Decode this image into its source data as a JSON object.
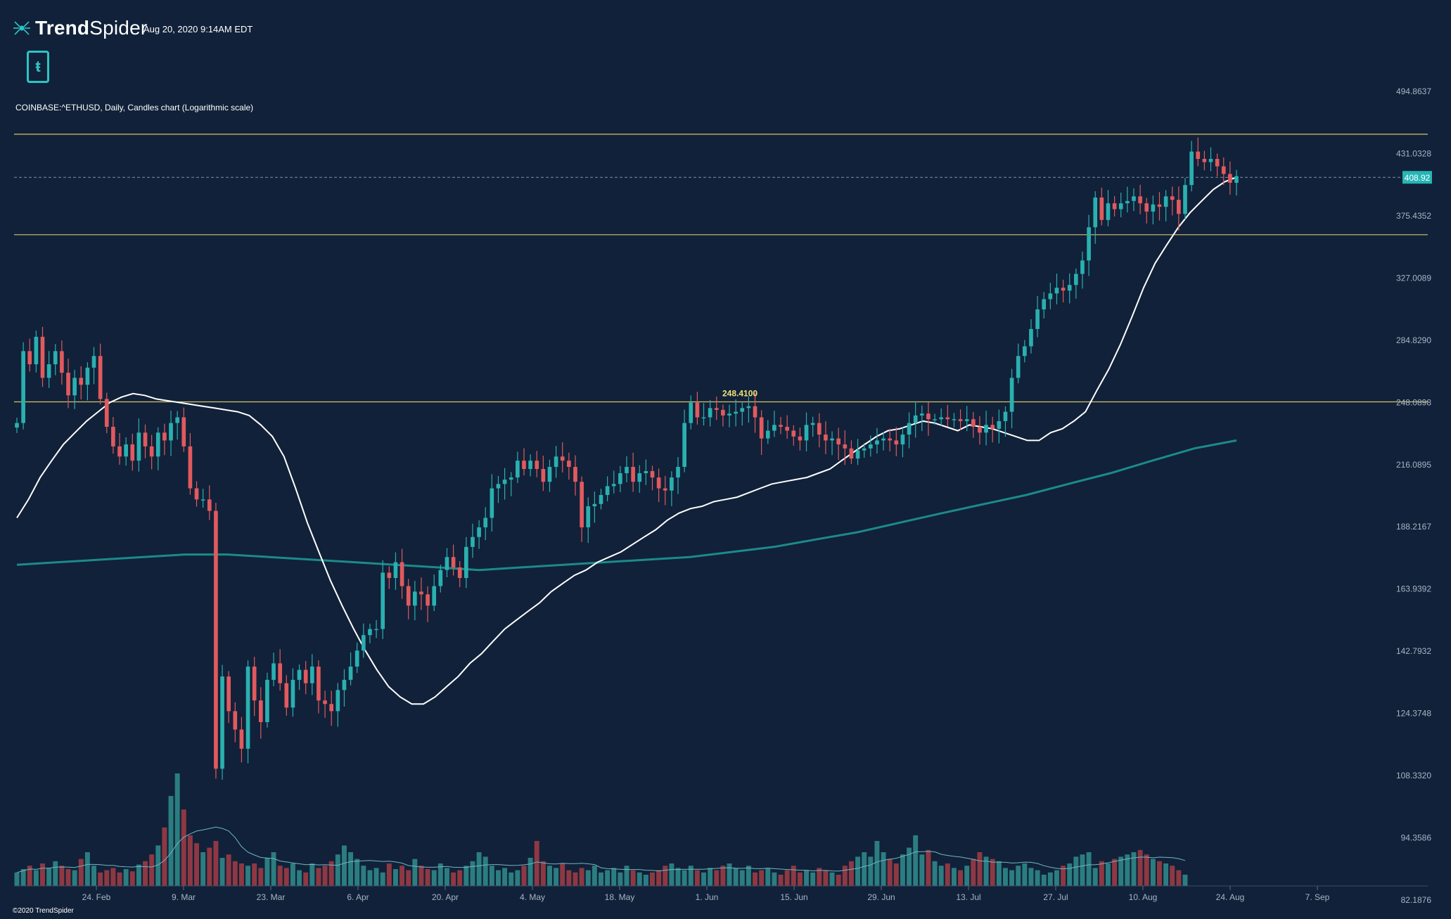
{
  "app": {
    "brand_bold": "Trend",
    "brand_light": "Spider",
    "timestamp": "Aug 20, 2020 9:14AM EDT",
    "badge_letter": "ŧ",
    "copyright": "©2020 TrendSpider"
  },
  "chart_data": {
    "type": "candlestick",
    "title": "COINBASE:^ETHUSD, Daily, Candles chart (Logarithmic scale)",
    "scale": "log",
    "y_tick_labels": [
      "494.8637",
      "431.0328",
      "375.4352",
      "327.0089",
      "284.8290",
      "248.0898",
      "216.0895",
      "188.2167",
      "163.9392",
      "142.7932",
      "124.3748",
      "108.3320",
      "94.3586",
      "82.1876"
    ],
    "x_tick_labels": [
      "24. Feb",
      "9. Mar",
      "23. Mar",
      "6. Apr",
      "20. Apr",
      "4. May",
      "18. May",
      "1. Jun",
      "15. Jun",
      "29. Jun",
      "13. Jul",
      "27. Jul",
      "10. Aug",
      "24. Aug",
      "7. Sep"
    ],
    "last_price": "408.92",
    "annotation": "248.4100",
    "horizontal_lines": [
      450,
      360,
      248.41
    ],
    "colors": {
      "up": "#2ab0b0",
      "down": "#e05a5e",
      "ma_fast": "#ffffff",
      "ma_slow": "#1c8a8a",
      "level_line": "#d6c46a",
      "price_tag": "#26b6b6"
    },
    "closes": [
      237,
      278,
      270,
      287,
      262,
      270,
      278,
      265,
      252,
      262,
      258,
      268,
      275,
      250,
      235,
      225,
      220,
      226,
      218,
      232,
      225,
      220,
      232,
      228,
      237,
      240,
      225,
      205,
      200,
      200,
      195,
      110,
      135,
      125,
      120,
      115,
      138,
      128,
      122,
      134,
      139,
      133,
      126,
      134,
      137,
      133,
      138,
      128,
      127,
      125,
      131,
      134,
      138,
      143,
      148,
      150,
      150,
      170,
      168,
      174,
      165,
      158,
      163,
      162,
      158,
      165,
      171,
      176,
      172,
      168,
      180,
      184,
      188,
      192,
      205,
      207,
      209,
      210,
      218,
      214,
      218,
      214,
      208,
      215,
      220,
      218,
      215,
      208,
      188,
      197,
      198,
      202,
      206,
      207,
      212,
      215,
      208,
      212,
      213,
      210,
      205,
      204,
      210,
      215,
      237,
      248,
      240,
      240,
      245,
      244,
      241,
      242,
      243,
      245,
      246,
      240,
      229,
      233,
      236,
      235,
      233,
      230,
      228,
      236,
      237,
      231,
      228,
      229,
      226,
      224,
      219,
      223,
      224,
      226,
      228,
      229,
      228,
      226,
      231,
      237,
      241,
      242,
      239,
      239,
      240,
      239,
      239,
      238,
      239,
      235,
      232,
      236,
      234,
      238,
      243,
      262,
      275,
      281,
      292,
      305,
      312,
      316,
      320,
      318,
      322,
      330,
      340,
      366,
      391,
      372,
      386,
      381,
      386,
      388,
      392,
      386,
      379,
      385,
      383,
      392,
      389,
      377,
      402,
      433,
      426,
      423,
      426,
      419,
      412,
      404,
      410
    ],
    "ma_fast": [
      192,
      200,
      210,
      218,
      226,
      232,
      238,
      243,
      248,
      251,
      253,
      252,
      250,
      249,
      248,
      247,
      246,
      245,
      244,
      243,
      241,
      236,
      230,
      220,
      205,
      190,
      178,
      167,
      158,
      150,
      143,
      137,
      132,
      129,
      127,
      127,
      129,
      132,
      135,
      139,
      142,
      146,
      150,
      153,
      156,
      159,
      163,
      166,
      169,
      171,
      174,
      176,
      178,
      181,
      184,
      187,
      191,
      194,
      196,
      197,
      199,
      200,
      201,
      203,
      205,
      207,
      208,
      209,
      210,
      212,
      214,
      218,
      222,
      226,
      230,
      233,
      234,
      236,
      238,
      237,
      235,
      233,
      236,
      235,
      234,
      232,
      230,
      228,
      228,
      232,
      234,
      238,
      243,
      255,
      267,
      282,
      300,
      320,
      338,
      352,
      366,
      378,
      388,
      398,
      405,
      409
    ],
    "ma_slow": [
      173,
      174,
      175,
      176,
      177,
      177,
      176,
      175,
      174,
      173,
      172,
      171,
      172,
      173,
      174,
      175,
      176,
      178,
      180,
      183,
      186,
      190,
      194,
      198,
      202,
      207,
      212,
      218,
      224,
      228
    ],
    "volume": [
      12,
      15,
      18,
      14,
      20,
      16,
      22,
      18,
      15,
      14,
      24,
      30,
      18,
      12,
      14,
      16,
      12,
      15,
      13,
      19,
      22,
      28,
      36,
      52,
      80,
      100,
      68,
      45,
      38,
      30,
      34,
      40,
      25,
      28,
      22,
      20,
      18,
      20,
      16,
      25,
      30,
      18,
      16,
      20,
      14,
      12,
      20,
      16,
      18,
      22,
      28,
      36,
      30,
      24,
      18,
      14,
      16,
      12,
      20,
      15,
      18,
      14,
      24,
      18,
      15,
      14,
      20,
      16,
      12,
      14,
      18,
      22,
      30,
      26,
      18,
      14,
      16,
      12,
      14,
      18,
      25,
      40,
      22,
      18,
      16,
      20,
      14,
      12,
      16,
      14,
      18,
      12,
      14,
      16,
      12,
      18,
      14,
      12,
      10,
      12,
      14,
      18,
      20,
      16,
      14,
      18,
      14,
      12,
      16,
      14,
      18,
      20,
      16,
      14,
      18,
      12,
      14,
      16,
      12,
      10,
      14,
      18,
      12,
      14,
      12,
      16,
      14,
      12,
      10,
      18,
      22,
      26,
      30,
      26,
      40,
      30,
      24,
      20,
      28,
      34,
      45,
      28,
      32,
      22,
      18,
      20,
      16,
      14,
      18,
      24,
      30,
      26,
      24,
      22,
      16,
      14,
      18,
      20,
      16,
      14,
      10,
      12,
      14,
      18,
      20,
      26,
      28,
      30,
      16,
      22,
      20,
      24,
      26,
      28,
      30,
      32,
      28,
      24,
      22,
      20,
      18,
      14,
      10
    ]
  }
}
